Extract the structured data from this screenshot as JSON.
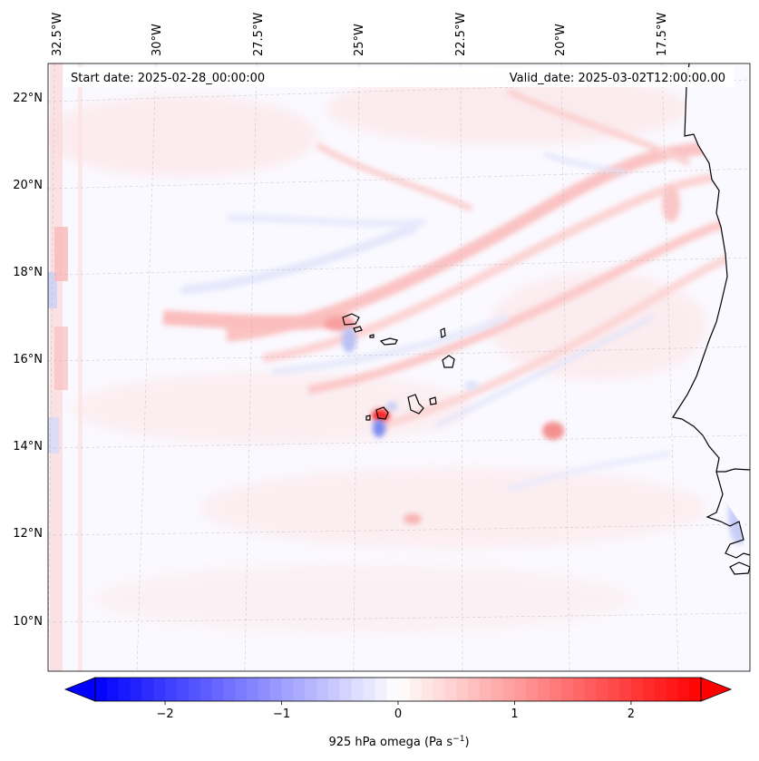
{
  "map": {
    "start_date": "Start date: 2025-02-28_00:00:00",
    "valid_date": "Valid_date: 2025-03-02T12:00:00.00",
    "lon_labels": [
      "32.5°W",
      "30°W",
      "27.5°W",
      "25°W",
      "22.5°W",
      "20°W",
      "17.5°W"
    ],
    "lat_labels": [
      "22°N",
      "20°N",
      "18°N",
      "16°N",
      "14°N",
      "12°N",
      "10°N"
    ]
  },
  "colorbar": {
    "label": "925 hPa omega (Pa s",
    "label_sup": "−1",
    "label_close": ")",
    "ticks": [
      "−2",
      "−1",
      "0",
      "1",
      "2"
    ],
    "min": -2.6,
    "max": 2.6,
    "colormap": "bwr",
    "extend": "both"
  },
  "colors": {
    "positive": "#ff0000",
    "negative": "#0000ff",
    "neutral": "#ffffff"
  }
}
